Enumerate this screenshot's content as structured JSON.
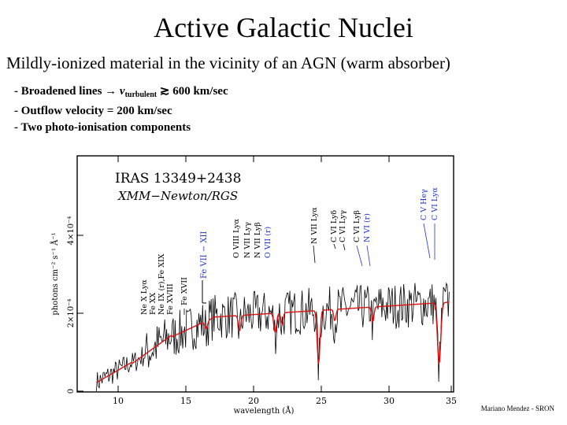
{
  "slide": {
    "title": "Active Galactic Nuclei",
    "subtitle": "Mildly-ionized material in the vicinity of an AGN (warm absorber)",
    "bullets": {
      "b1_prefix": "- Broadened lines",
      "b1_arrow": "→",
      "b1_var": "v",
      "b1_sub": "turbulent",
      "b1_rel": "≳",
      "b1_value": "600 km/sec",
      "b2": "- Outflow velocity = 200 km/sec",
      "b3": "- Two photo-ionisation components"
    },
    "credit": "Mariano Mendez - SRON"
  },
  "figure": {
    "target": "IRAS 13349+2438",
    "instrument": "XMM−Newton/RGS",
    "xlabel": "wavelength (Å)",
    "ylabel": "photons cm⁻² s⁻¹ Å⁻¹",
    "xticks": [
      "10",
      "15",
      "20",
      "25",
      "30",
      "35"
    ],
    "yticks": [
      "0",
      "2×10⁻⁴",
      "4×10⁻⁴"
    ],
    "fe_uta_label": "Fe VII − XII",
    "line_ids": [
      {
        "text": "Ne X Lyα",
        "color": "#000000"
      },
      {
        "text": "Fe XX",
        "color": "#000000"
      },
      {
        "text": "Ne IX (r),Fe XIX",
        "color": "#000000"
      },
      {
        "text": "Fe XVIII",
        "color": "#000000"
      },
      {
        "text": "Fe XVII",
        "color": "#000000"
      },
      {
        "text": "O VIII Lyα",
        "color": "#000000"
      },
      {
        "text": "N VII Lyγ",
        "color": "#000000"
      },
      {
        "text": "N VII Lyβ",
        "color": "#000000"
      },
      {
        "text": "O VII (r)",
        "color": "#2233cc"
      },
      {
        "text": "N VII Lyα",
        "color": "#000000"
      },
      {
        "text": "C VI Lyδ",
        "color": "#000000"
      },
      {
        "text": "C VI Lyγ",
        "color": "#000000"
      },
      {
        "text": "C VI Lyβ",
        "color": "#000000"
      },
      {
        "text": "N VI (r)",
        "color": "#2233cc"
      },
      {
        "text": "C V Heγ",
        "color": "#2233cc"
      },
      {
        "text": "C VI Lyα",
        "color": "#2233cc"
      }
    ],
    "colors": {
      "data": "#000000",
      "model": "#dd1111",
      "blue_ids": "#2233cc"
    }
  }
}
